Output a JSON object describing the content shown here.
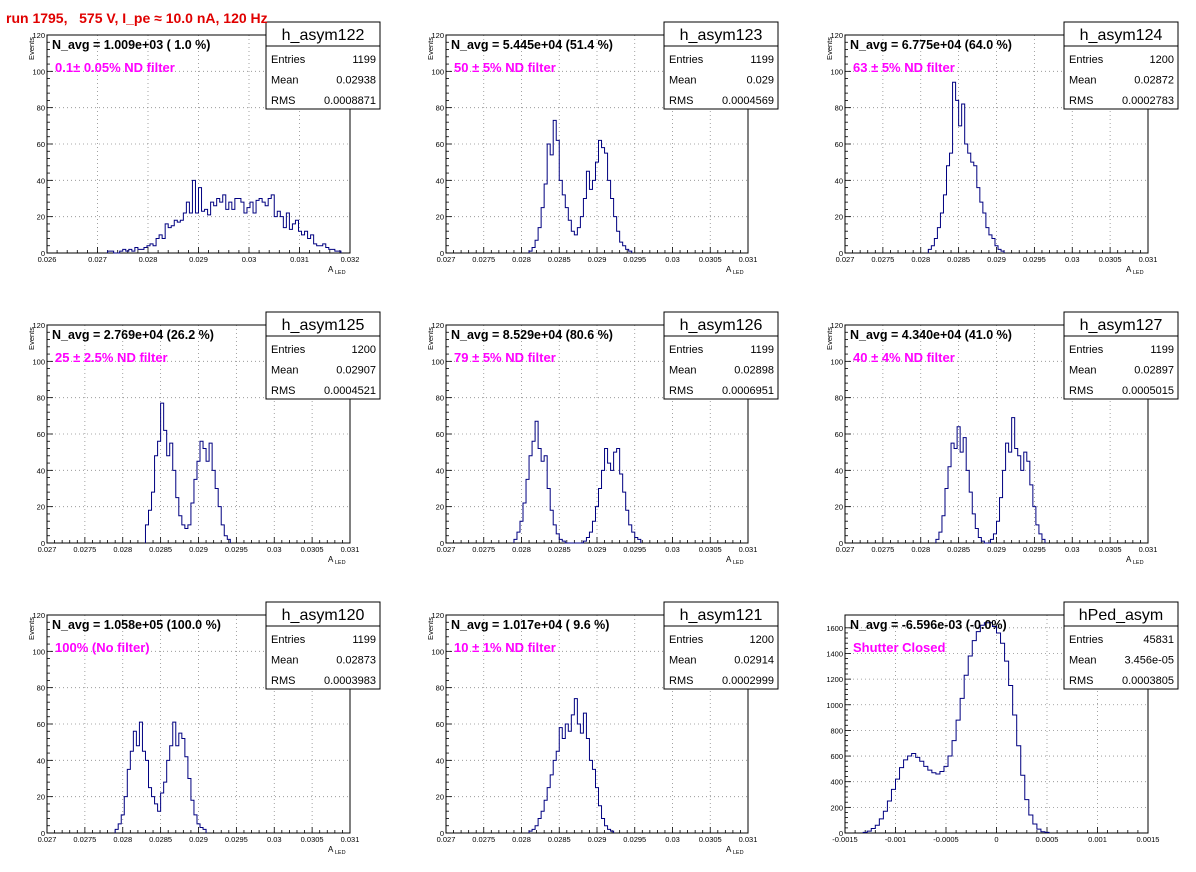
{
  "run_title": "run 1795,   575 V, I_pe ≈ 10.0 nA, 120 Hz",
  "colors": {
    "histogram": "#000080",
    "annotation": "#ff00ff",
    "run_title": "#e00000",
    "grid": "#8c8c8c"
  },
  "stat_labels": {
    "entries": "Entries",
    "mean": "Mean",
    "rms": "RMS"
  },
  "chart_data": [
    {
      "type": "histogram",
      "name": "h_asym122",
      "navg_text": "N_avg = 1.009e+03 ( 1.0 %)",
      "annotation": "0.1± 0.05% ND filter",
      "entries": "1199",
      "mean": "0.02938",
      "rms": "0.0008871",
      "ylabel": "Events",
      "xlabel": "A",
      "xlabel_sub": "LED",
      "xlim": [
        0.026,
        0.032
      ],
      "ylim": [
        0,
        120
      ],
      "grid": true,
      "xticks": [
        0.026,
        0.027,
        0.028,
        0.029,
        0.03,
        0.031,
        0.032
      ],
      "xtick_labels": [
        "0.026",
        "0.027",
        "0.028",
        "0.029",
        "0.03",
        "0.031",
        "0.032"
      ],
      "yticks": [
        0,
        20,
        40,
        60,
        80,
        100,
        120
      ],
      "bin_start": 0.0272,
      "bin_width": 6e-05,
      "counts": [
        1,
        1,
        0,
        0,
        1,
        2,
        1,
        2,
        1,
        3,
        2,
        2,
        3,
        4,
        5,
        4,
        8,
        10,
        8,
        16,
        14,
        15,
        18,
        17,
        18,
        22,
        28,
        22,
        40,
        22,
        36,
        23,
        24,
        21,
        28,
        26,
        30,
        28,
        32,
        24,
        28,
        24,
        30,
        30,
        28,
        22,
        25,
        28,
        22,
        29,
        30,
        28,
        26,
        30,
        32,
        20,
        23,
        20,
        14,
        22,
        13,
        16,
        18,
        12,
        10,
        12,
        8,
        10,
        5,
        4,
        4,
        5,
        3,
        2,
        2,
        1,
        1
      ]
    },
    {
      "type": "histogram",
      "name": "h_asym123",
      "navg_text": "N_avg = 5.445e+04 (51.4 %)",
      "annotation": "50 ± 5% ND filter",
      "entries": "1199",
      "mean": "0.029",
      "rms": "0.0004569",
      "ylabel": "Events",
      "xlabel": "A",
      "xlabel_sub": "LED",
      "xlim": [
        0.027,
        0.031
      ],
      "ylim": [
        0,
        120
      ],
      "grid": true,
      "xticks": [
        0.027,
        0.0275,
        0.028,
        0.0285,
        0.029,
        0.0295,
        0.03,
        0.0305,
        0.031
      ],
      "xtick_labels": [
        "0.027",
        "0.0275",
        "0.028",
        "0.0285",
        "0.029",
        "0.0295",
        "0.03",
        "0.0305",
        "0.031"
      ],
      "yticks": [
        0,
        20,
        40,
        60,
        80,
        100,
        120
      ],
      "bin_start": 0.0281,
      "bin_width": 4e-05,
      "counts": [
        1,
        3,
        7,
        14,
        25,
        38,
        60,
        54,
        73,
        62,
        40,
        32,
        25,
        18,
        12,
        10,
        14,
        20,
        30,
        45,
        35,
        40,
        50,
        62,
        58,
        55,
        40,
        30,
        20,
        12,
        6,
        4,
        2,
        1
      ]
    },
    {
      "type": "histogram",
      "name": "h_asym124",
      "navg_text": "N_avg = 6.775e+04 (64.0 %)",
      "annotation": "63 ± 5% ND filter",
      "entries": "1200",
      "mean": "0.02872",
      "rms": "0.0002783",
      "ylabel": "Events",
      "xlabel": "A",
      "xlabel_sub": "LED",
      "xlim": [
        0.027,
        0.031
      ],
      "ylim": [
        0,
        120
      ],
      "grid": true,
      "xticks": [
        0.027,
        0.0275,
        0.028,
        0.0285,
        0.029,
        0.0295,
        0.03,
        0.0305,
        0.031
      ],
      "xtick_labels": [
        "0.027",
        "0.0275",
        "0.028",
        "0.0285",
        "0.029",
        "0.0295",
        "0.03",
        "0.0305",
        "0.031"
      ],
      "yticks": [
        0,
        20,
        40,
        60,
        80,
        100,
        120
      ],
      "bin_start": 0.0281,
      "bin_width": 4e-05,
      "counts": [
        2,
        4,
        8,
        14,
        22,
        32,
        48,
        55,
        94,
        84,
        70,
        82,
        60,
        55,
        50,
        48,
        36,
        28,
        22,
        14,
        10,
        8,
        4,
        2,
        1
      ]
    },
    {
      "type": "histogram",
      "name": "h_asym125",
      "navg_text": "N_avg = 2.769e+04 (26.2 %)",
      "annotation": "25 ± 2.5% ND filter",
      "entries": "1200",
      "mean": "0.02907",
      "rms": "0.0004521",
      "ylabel": "Events",
      "xlabel": "A",
      "xlabel_sub": "LED",
      "xlim": [
        0.027,
        0.031
      ],
      "ylim": [
        0,
        120
      ],
      "grid": true,
      "xticks": [
        0.027,
        0.0275,
        0.028,
        0.0285,
        0.029,
        0.0295,
        0.03,
        0.0305,
        0.031
      ],
      "xtick_labels": [
        "0.027",
        "0.0275",
        "0.028",
        "0.0285",
        "0.029",
        "0.0295",
        "0.03",
        "0.0305",
        "0.031"
      ],
      "yticks": [
        0,
        20,
        40,
        60,
        80,
        100,
        120
      ],
      "bin_start": 0.0283,
      "bin_width": 4e-05,
      "counts": [
        10,
        18,
        28,
        48,
        56,
        77,
        62,
        48,
        55,
        40,
        25,
        15,
        10,
        8,
        10,
        22,
        35,
        45,
        56,
        52,
        45,
        55,
        40,
        30,
        20,
        10,
        4,
        2
      ]
    },
    {
      "type": "histogram",
      "name": "h_asym126",
      "navg_text": "N_avg = 8.529e+04 (80.6 %)",
      "annotation": "79 ± 5% ND filter",
      "entries": "1199",
      "mean": "0.02898",
      "rms": "0.0006951",
      "ylabel": "Events",
      "xlabel": "A",
      "xlabel_sub": "LED",
      "xlim": [
        0.027,
        0.031
      ],
      "ylim": [
        0,
        120
      ],
      "grid": true,
      "xticks": [
        0.027,
        0.0275,
        0.028,
        0.0285,
        0.029,
        0.0295,
        0.03,
        0.0305,
        0.031
      ],
      "xtick_labels": [
        "0.027",
        "0.0275",
        "0.028",
        "0.0285",
        "0.029",
        "0.0295",
        "0.03",
        "0.0305",
        "0.031"
      ],
      "yticks": [
        0,
        20,
        40,
        60,
        80,
        100,
        120
      ],
      "bin_start": 0.0279,
      "bin_width": 4e-05,
      "counts": [
        2,
        6,
        12,
        22,
        35,
        48,
        56,
        67,
        52,
        45,
        48,
        30,
        18,
        10,
        5,
        2,
        1,
        0,
        0,
        0,
        0,
        0,
        0,
        1,
        3,
        6,
        12,
        20,
        30,
        40,
        52,
        44,
        40,
        50,
        52,
        38,
        28,
        18,
        10,
        6,
        3,
        2
      ]
    },
    {
      "type": "histogram",
      "name": "h_asym127",
      "navg_text": "N_avg = 4.340e+04 (41.0 %)",
      "annotation": "40 ± 4% ND filter",
      "entries": "1199",
      "mean": "0.02897",
      "rms": "0.0005015",
      "ylabel": "Events",
      "xlabel": "A",
      "xlabel_sub": "LED",
      "xlim": [
        0.027,
        0.031
      ],
      "ylim": [
        0,
        120
      ],
      "grid": true,
      "xticks": [
        0.027,
        0.0275,
        0.028,
        0.0285,
        0.029,
        0.0295,
        0.03,
        0.0305,
        0.031
      ],
      "xtick_labels": [
        "0.027",
        "0.0275",
        "0.028",
        "0.0285",
        "0.029",
        "0.0295",
        "0.03",
        "0.0305",
        "0.031"
      ],
      "yticks": [
        0,
        20,
        40,
        60,
        80,
        100,
        120
      ],
      "bin_start": 0.0282,
      "bin_width": 4e-05,
      "counts": [
        2,
        6,
        15,
        30,
        42,
        55,
        52,
        64,
        50,
        58,
        40,
        28,
        16,
        8,
        3,
        1,
        0,
        0,
        2,
        5,
        12,
        25,
        40,
        55,
        50,
        69,
        52,
        48,
        40,
        50,
        45,
        32,
        20,
        10,
        5,
        2
      ]
    },
    {
      "type": "histogram",
      "name": "h_asym120",
      "navg_text": "N_avg = 1.058e+05 (100.0 %)",
      "annotation": "100% (No filter)",
      "entries": "1199",
      "mean": "0.02873",
      "rms": "0.0003983",
      "ylabel": "Events",
      "xlabel": "A",
      "xlabel_sub": "LED",
      "xlim": [
        0.027,
        0.031
      ],
      "ylim": [
        0,
        120
      ],
      "grid": true,
      "xticks": [
        0.027,
        0.0275,
        0.028,
        0.0285,
        0.029,
        0.0295,
        0.03,
        0.0305,
        0.031
      ],
      "xtick_labels": [
        "0.027",
        "0.0275",
        "0.028",
        "0.0285",
        "0.029",
        "0.0295",
        "0.03",
        "0.0305",
        "0.031"
      ],
      "yticks": [
        0,
        20,
        40,
        60,
        80,
        100,
        120
      ],
      "bin_start": 0.0279,
      "bin_width": 4e-05,
      "counts": [
        2,
        5,
        10,
        20,
        35,
        45,
        56,
        48,
        61,
        45,
        40,
        25,
        20,
        16,
        12,
        22,
        28,
        40,
        48,
        61,
        48,
        55,
        52,
        42,
        30,
        18,
        10,
        5,
        3,
        2
      ]
    },
    {
      "type": "histogram",
      "name": "h_asym121",
      "navg_text": "N_avg = 1.017e+04 ( 9.6 %)",
      "annotation": "10 ± 1% ND filter",
      "entries": "1200",
      "mean": "0.02914",
      "rms": "0.0002999",
      "ylabel": "Events",
      "xlabel": "A",
      "xlabel_sub": "LED",
      "xlim": [
        0.027,
        0.031
      ],
      "ylim": [
        0,
        120
      ],
      "grid": true,
      "xticks": [
        0.027,
        0.0275,
        0.028,
        0.0285,
        0.029,
        0.0295,
        0.03,
        0.0305,
        0.031
      ],
      "xtick_labels": [
        "0.027",
        "0.0275",
        "0.028",
        "0.0285",
        "0.029",
        "0.0295",
        "0.03",
        "0.0305",
        "0.031"
      ],
      "yticks": [
        0,
        20,
        40,
        60,
        80,
        100,
        120
      ],
      "bin_start": 0.0281,
      "bin_width": 4e-05,
      "counts": [
        1,
        2,
        4,
        8,
        12,
        18,
        25,
        32,
        40,
        45,
        58,
        52,
        60,
        56,
        65,
        74,
        60,
        55,
        66,
        52,
        40,
        35,
        25,
        15,
        8,
        4,
        2,
        1
      ]
    },
    {
      "type": "histogram",
      "name": "hPed_asym",
      "navg_text": "N_avg = -6.596e-03 (-0.0%)",
      "annotation": "Shutter Closed",
      "entries": "45831",
      "mean": "3.456e-05",
      "rms": "0.0003805",
      "ylabel": "",
      "xlabel": "",
      "xlabel_sub": "",
      "xlim": [
        -0.0015,
        0.0015
      ],
      "ylim": [
        0,
        1700
      ],
      "grid": true,
      "xticks": [
        -0.0015,
        -0.001,
        -0.0005,
        0,
        0.0005,
        0.001,
        0.0015
      ],
      "xtick_labels": [
        "-0.0015",
        "-0.001",
        "-0.0005",
        "0",
        "0.0005",
        "0.001",
        "0.0015"
      ],
      "yticks": [
        0,
        200,
        400,
        600,
        800,
        1000,
        1200,
        1400,
        1600
      ],
      "bin_start": -0.00132,
      "bin_width": 4e-05,
      "counts": [
        5,
        15,
        35,
        60,
        110,
        170,
        250,
        340,
        420,
        510,
        570,
        600,
        620,
        590,
        560,
        520,
        490,
        470,
        460,
        480,
        520,
        600,
        720,
        880,
        1050,
        1230,
        1380,
        1500,
        1570,
        1620,
        1640,
        1640,
        1610,
        1560,
        1480,
        1340,
        1150,
        920,
        680,
        450,
        260,
        140,
        70,
        30,
        10,
        5
      ]
    }
  ]
}
